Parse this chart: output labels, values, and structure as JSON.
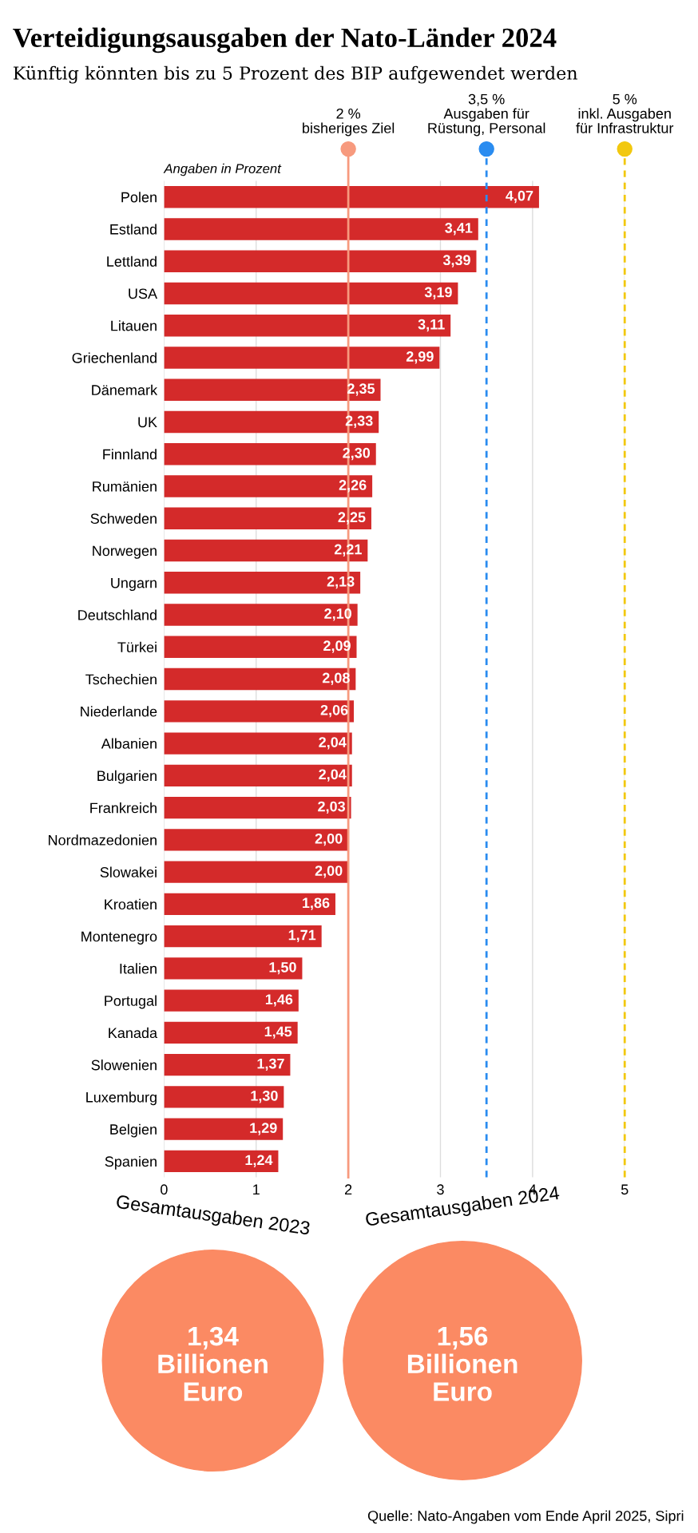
{
  "chart_data": [
    {
      "type": "bar",
      "orientation": "horizontal",
      "title": "Verteidigungsausgaben der Nato-Länder 2024",
      "subtitle": "Künftig könnten bis zu 5 Prozent des BIP aufgewendet werden",
      "categories": [
        "Polen",
        "Estland",
        "Lettland",
        "USA",
        "Litauen",
        "Griechenland",
        "Dänemark",
        "UK",
        "Finnland",
        "Rumänien",
        "Schweden",
        "Norwegen",
        "Ungarn",
        "Deutschland",
        "Türkei",
        "Tschechien",
        "Niederlande",
        "Albanien",
        "Bulgarien",
        "Frankreich",
        "Nordmazedonien",
        "Slowakei",
        "Kroatien",
        "Montenegro",
        "Italien",
        "Portugal",
        "Kanada",
        "Slowenien",
        "Luxemburg",
        "Belgien",
        "Spanien"
      ],
      "values": [
        4.07,
        3.41,
        3.39,
        3.19,
        3.11,
        2.99,
        2.35,
        2.33,
        2.3,
        2.26,
        2.25,
        2.21,
        2.13,
        2.1,
        2.09,
        2.08,
        2.06,
        2.04,
        2.04,
        2.03,
        2.0,
        2.0,
        1.86,
        1.71,
        1.5,
        1.46,
        1.45,
        1.37,
        1.3,
        1.29,
        1.24
      ],
      "value_labels": [
        "4,07",
        "3,41",
        "3,39",
        "3,19",
        "3,11",
        "2,99",
        "2,35",
        "2,33",
        "2,30",
        "2,26",
        "2,25",
        "2,21",
        "2,13",
        "2,10",
        "2,09",
        "2,08",
        "2,06",
        "2,04",
        "2,04",
        "2,03",
        "2,00",
        "2,00",
        "1,86",
        "1,71",
        "1,50",
        "1,46",
        "1,45",
        "1,37",
        "1,30",
        "1,29",
        "1,24"
      ],
      "color": "#d42a2a",
      "xlim": [
        0,
        5
      ],
      "xticks": [
        0,
        1,
        2,
        3,
        4,
        5
      ],
      "grid": "x",
      "ref_lines": [
        {
          "axis": "x",
          "value": 2,
          "label": "2 %\nbisheriges Ziel",
          "color": "#f79a7e",
          "line_style": "solid"
        },
        {
          "axis": "x",
          "value": 3.5,
          "label": "3,5 %\nAusgaben für\nRüstung, Personal",
          "color": "#2a8cf0",
          "line_style": "dashed"
        },
        {
          "axis": "x",
          "value": 5,
          "label": "5 %\ninkl. Ausgaben\nfür Infrastruktur",
          "color": "#f2c80f",
          "line_style": "dashed"
        }
      ],
      "annotations": [
        "Angaben in Prozent"
      ]
    },
    {
      "type": "other",
      "categories": [
        "Gesamtausgaben 2023",
        "Gesamtausgaben 2024"
      ],
      "values": [
        1.34,
        1.56
      ],
      "value_labels": [
        "1,34\nBillionen\nEuro",
        "1,56\nBillionen\nEuro"
      ],
      "colors": [
        "#fb8a63",
        "#fb8a63"
      ],
      "annotations": [
        "Quelle: Nato-Angaben vom Ende April 2025, Sipri"
      ]
    }
  ]
}
